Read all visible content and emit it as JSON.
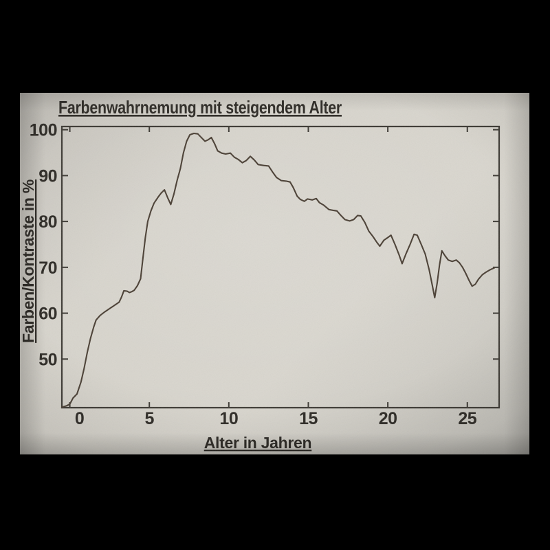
{
  "window": {
    "background": "#000000"
  },
  "chart_data": {
    "type": "line",
    "title": "Farbenwahrnemung mit steigendem Alter",
    "xlabel": "Alter in Jahren",
    "ylabel": "Farben/Kontraste in %",
    "xlim": [
      -0.5,
      27.0
    ],
    "ylim": [
      39.4,
      100.7
    ],
    "x_ticks": [
      0,
      5,
      10,
      15,
      20,
      25
    ],
    "y_ticks": [
      50,
      60,
      70,
      80,
      90,
      100
    ],
    "grid": false,
    "legend": "none",
    "colors": {
      "line": "#4a3f34",
      "axis": "#3c3933",
      "text": "#2d2a25",
      "paper": "#d2cfc7",
      "outer_background": "#000000"
    },
    "series": [
      {
        "name": "Farben/Kontraste in %",
        "points": [
          [
            -0.5,
            39.5
          ],
          [
            -0.2,
            39.8
          ],
          [
            0,
            40.2
          ],
          [
            0.2,
            41.5
          ],
          [
            0.45,
            42.4
          ],
          [
            0.7,
            45.0
          ],
          [
            0.9,
            48.0
          ],
          [
            1.1,
            51.5
          ],
          [
            1.3,
            54.5
          ],
          [
            1.5,
            57.0
          ],
          [
            1.65,
            58.5
          ],
          [
            1.9,
            59.5
          ],
          [
            2.2,
            60.3
          ],
          [
            2.5,
            61.0
          ],
          [
            2.8,
            61.7
          ],
          [
            3.1,
            62.4
          ],
          [
            3.25,
            63.5
          ],
          [
            3.4,
            64.9
          ],
          [
            3.6,
            64.8
          ],
          [
            3.75,
            64.5
          ],
          [
            3.9,
            64.7
          ],
          [
            4.05,
            65.0
          ],
          [
            4.25,
            66.0
          ],
          [
            4.45,
            67.5
          ],
          [
            4.6,
            72.0
          ],
          [
            4.75,
            76.5
          ],
          [
            4.9,
            80.0
          ],
          [
            5.1,
            82.3
          ],
          [
            5.3,
            84.0
          ],
          [
            5.55,
            85.3
          ],
          [
            5.75,
            86.2
          ],
          [
            5.95,
            86.9
          ],
          [
            6.15,
            85.2
          ],
          [
            6.35,
            83.7
          ],
          [
            6.55,
            86.0
          ],
          [
            6.75,
            89.0
          ],
          [
            6.95,
            91.5
          ],
          [
            7.15,
            95.0
          ],
          [
            7.35,
            97.5
          ],
          [
            7.55,
            98.9
          ],
          [
            7.8,
            99.2
          ],
          [
            8.05,
            99.1
          ],
          [
            8.3,
            98.2
          ],
          [
            8.5,
            97.5
          ],
          [
            8.7,
            97.8
          ],
          [
            8.9,
            98.3
          ],
          [
            9.1,
            97.0
          ],
          [
            9.3,
            95.4
          ],
          [
            9.55,
            94.9
          ],
          [
            9.8,
            94.7
          ],
          [
            10.1,
            94.9
          ],
          [
            10.35,
            94.0
          ],
          [
            10.6,
            93.5
          ],
          [
            10.85,
            92.8
          ],
          [
            11.1,
            93.3
          ],
          [
            11.35,
            94.2
          ],
          [
            11.6,
            93.4
          ],
          [
            11.85,
            92.4
          ],
          [
            12.2,
            92.2
          ],
          [
            12.5,
            92.1
          ],
          [
            12.75,
            90.8
          ],
          [
            13.0,
            89.6
          ],
          [
            13.3,
            88.9
          ],
          [
            13.6,
            88.8
          ],
          [
            13.85,
            88.6
          ],
          [
            14.05,
            87.4
          ],
          [
            14.3,
            85.5
          ],
          [
            14.5,
            84.8
          ],
          [
            14.75,
            84.4
          ],
          [
            14.95,
            84.9
          ],
          [
            15.25,
            84.7
          ],
          [
            15.5,
            85.0
          ],
          [
            15.7,
            84.1
          ],
          [
            15.95,
            83.6
          ],
          [
            16.3,
            82.6
          ],
          [
            16.6,
            82.4
          ],
          [
            16.8,
            82.3
          ],
          [
            17.05,
            81.3
          ],
          [
            17.3,
            80.4
          ],
          [
            17.6,
            80.1
          ],
          [
            17.85,
            80.4
          ],
          [
            18.1,
            81.3
          ],
          [
            18.3,
            81.2
          ],
          [
            18.55,
            79.8
          ],
          [
            18.8,
            77.9
          ],
          [
            19.05,
            76.8
          ],
          [
            19.3,
            75.5
          ],
          [
            19.5,
            74.6
          ],
          [
            19.75,
            75.9
          ],
          [
            20.0,
            76.5
          ],
          [
            20.2,
            77.0
          ],
          [
            20.45,
            75.0
          ],
          [
            20.7,
            72.8
          ],
          [
            20.9,
            70.8
          ],
          [
            21.15,
            73.0
          ],
          [
            21.4,
            75.0
          ],
          [
            21.65,
            77.2
          ],
          [
            21.85,
            77.0
          ],
          [
            22.1,
            75.0
          ],
          [
            22.35,
            72.9
          ],
          [
            22.6,
            69.5
          ],
          [
            22.8,
            66.0
          ],
          [
            22.95,
            63.4
          ],
          [
            23.1,
            66.5
          ],
          [
            23.25,
            70.5
          ],
          [
            23.4,
            73.6
          ],
          [
            23.6,
            72.5
          ],
          [
            23.8,
            71.6
          ],
          [
            24.05,
            71.3
          ],
          [
            24.3,
            71.6
          ],
          [
            24.5,
            71.0
          ],
          [
            24.7,
            70.0
          ],
          [
            24.9,
            68.7
          ],
          [
            25.1,
            67.2
          ],
          [
            25.3,
            65.9
          ],
          [
            25.5,
            66.3
          ],
          [
            25.7,
            67.4
          ],
          [
            25.95,
            68.4
          ],
          [
            26.2,
            69.0
          ],
          [
            26.45,
            69.5
          ],
          [
            26.7,
            69.9
          ]
        ]
      }
    ]
  }
}
